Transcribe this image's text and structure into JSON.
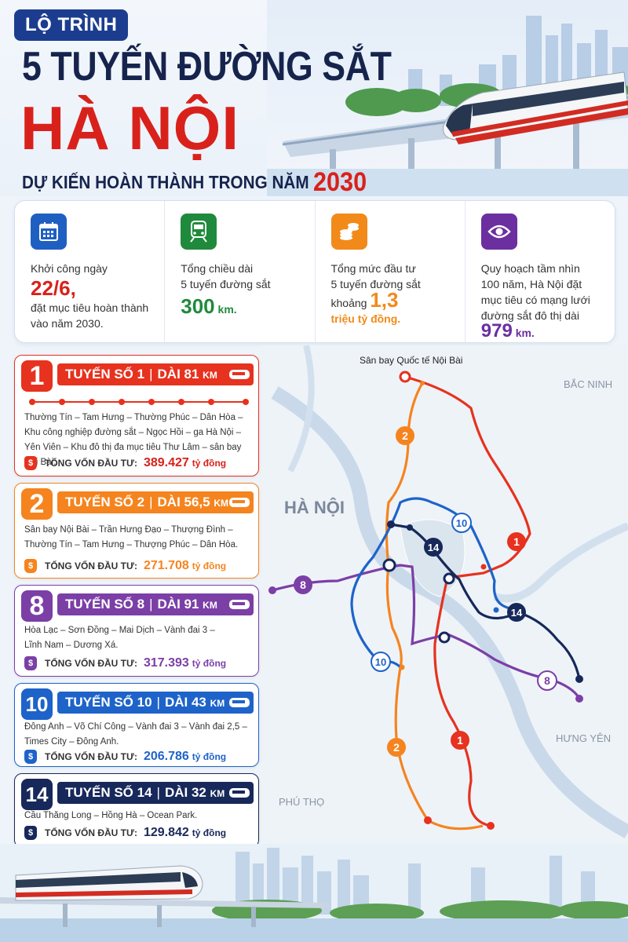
{
  "header": {
    "tag": "LỘ TRÌNH",
    "title_line1": "5 TUYẾN ĐƯỜNG SẮT",
    "title_line2": "HÀ NỘI",
    "subtitle": "DỰ KIẾN HOÀN THÀNH TRONG NĂM",
    "year": "2030"
  },
  "stats": [
    {
      "icon": "calendar-icon",
      "color": "#1f5fc2",
      "lines": [
        "Khởi công ngày"
      ],
      "big": "22/6,",
      "big_color": "#d9211b",
      "after": [
        "đặt mục tiêu hoàn thành",
        "vào năm 2030."
      ]
    },
    {
      "icon": "train-icon",
      "color": "#1f8a3c",
      "lines": [
        "Tổng chiều dài",
        "5 tuyến đường sắt"
      ],
      "big": "300",
      "unit": "km.",
      "big_color": "#1f8a3c"
    },
    {
      "icon": "coins-icon",
      "color": "#f28a1a",
      "lines": [
        "Tổng mức đầu tư",
        "5 tuyến đường sắt"
      ],
      "prefix": "khoảng",
      "big": "1,3",
      "unit": "triệu tỷ đồng.",
      "big_color": "#f28a1a"
    },
    {
      "icon": "eye-icon",
      "color": "#6b2fa0",
      "lines": [
        "Quy hoạch tầm nhìn",
        "100 năm, Hà Nội đặt",
        "mục tiêu có mạng lưới",
        "đường sắt đô thị dài"
      ],
      "big": "979",
      "unit": "km.",
      "big_color": "#6b2fa0"
    }
  ],
  "routes": [
    {
      "num": "1",
      "name": "TUYẾN SỐ 1",
      "length": "DÀI 81",
      "km": "KM",
      "color": "#e6321e",
      "stops": [
        "Thường Tín – Tam Hưng – Thường Phúc – Dân Hòa –",
        "Khu công nghiệp đường sắt – Ngọc Hồi – ga Hà Nội –",
        "Yên Viên – Khu đô thị đa mục tiêu Thư Lâm – sân bay Nội Bài."
      ],
      "fund_label": "TỔNG VỐN ĐẦU TƯ:",
      "fund": "389.427",
      "fund_unit": "tỷ đồng"
    },
    {
      "num": "2",
      "name": "TUYẾN SỐ 2",
      "length": "DÀI 56,5",
      "km": "KM",
      "color": "#f5841f",
      "stops": [
        "Sân bay Nội Bài – Trần Hưng Đạo – Thượng Đình –",
        "Thường Tín – Tam Hưng – Thượng Phúc – Dân Hòa."
      ],
      "fund_label": "TỔNG VỐN ĐẦU TƯ:",
      "fund": "271.708",
      "fund_unit": "tỷ đồng"
    },
    {
      "num": "8",
      "name": "TUYẾN SỐ 8",
      "length": "DÀI 91",
      "km": "KM",
      "color": "#7b3fa6",
      "stops": [
        "Hòa Lạc – Sơn Đồng – Mai Dịch – Vành đai 3 –",
        "Lĩnh Nam – Dương Xá."
      ],
      "fund_label": "TỔNG VỐN ĐẦU TƯ:",
      "fund": "317.393",
      "fund_unit": "tỷ đồng"
    },
    {
      "num": "10",
      "name": "TUYẾN SỐ 10",
      "length": "DÀI 43",
      "km": "KM",
      "color": "#1e63c9",
      "stops": [
        "Đông Anh – Võ Chí Công – Vành đai 3 – Vành đai 2,5 –",
        "Times City – Đông Anh."
      ],
      "fund_label": "TỔNG VỐN ĐẦU TƯ:",
      "fund": "206.786",
      "fund_unit": "tỷ đồng"
    },
    {
      "num": "14",
      "name": "TUYẾN SỐ 14",
      "length": "DÀI 32",
      "km": "KM",
      "color": "#17285a",
      "stops": [
        "Cầu Thăng Long – Hồng Hà – Ocean Park."
      ],
      "fund_label": "TỔNG VỐN ĐẦU TƯ:",
      "fund": "129.842",
      "fund_unit": "tỷ đồng"
    }
  ],
  "map": {
    "airport": "Sân bay Quốc tế Nội Bài",
    "regions": {
      "bac_ninh": "BẮC NINH",
      "ha_noi": "HÀ NỘI",
      "hung_yen": "HƯNG YÊN",
      "phu_tho": "PHÚ THỌ"
    },
    "line_labels": [
      "2",
      "1",
      "10",
      "14",
      "14",
      "8",
      "8",
      "10",
      "2",
      "1"
    ]
  }
}
